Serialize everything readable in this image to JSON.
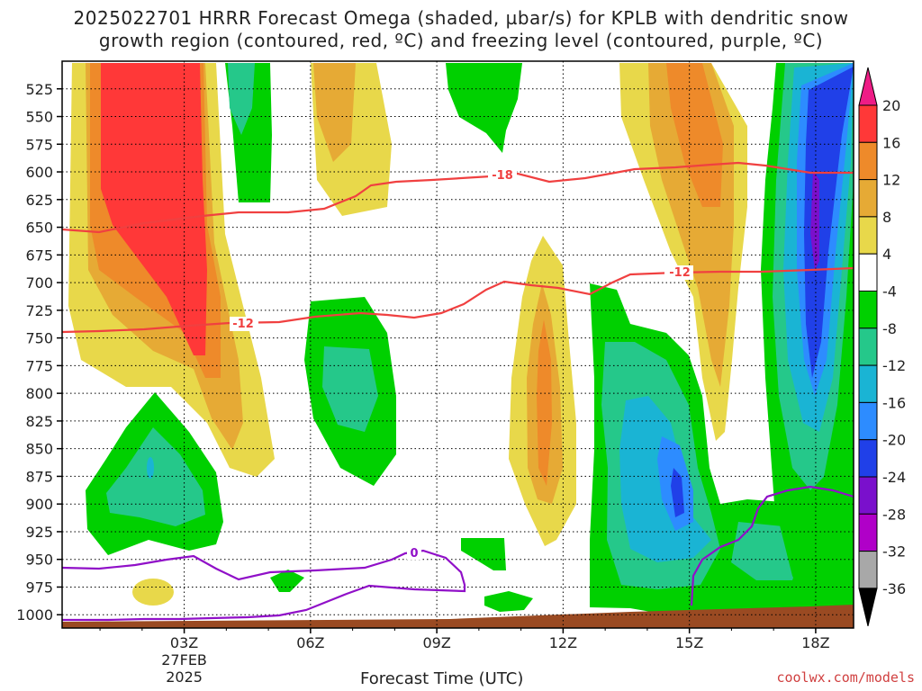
{
  "title_line1": "2025022701 HRRR Forecast Omega (shaded, µbar/s) for KPLB with dendritic snow",
  "title_line2": "growth region (contoured, red, ºC) and freezing level (contoured, purple, ºC)",
  "credit": "coolwx.com/models",
  "chart_data": {
    "type": "heatmap",
    "xlabel": "Forecast Time (UTC)",
    "ylabel": "",
    "x_ticks": [
      "03Z",
      "06Z",
      "09Z",
      "12Z",
      "15Z",
      "18Z"
    ],
    "x_tick_date": [
      "27FEB",
      "2025"
    ],
    "y_ticks": [
      525,
      550,
      575,
      600,
      625,
      650,
      675,
      700,
      725,
      750,
      775,
      800,
      825,
      850,
      875,
      900,
      925,
      950,
      975,
      1000
    ],
    "ylim": [
      500,
      1012
    ],
    "xlim_hours": [
      0.1,
      18.9
    ],
    "colorbar_labels": [
      20,
      16,
      12,
      8,
      4,
      -4,
      -8,
      -12,
      -16,
      -20,
      -24,
      -28,
      -32,
      -36
    ],
    "colorbar_colors": [
      "#ee1c86",
      "#ff3838",
      "#ee8a2a",
      "#e6aa35",
      "#e8d84a",
      "#ffffff",
      "#00d000",
      "#25c88a",
      "#1ab4d4",
      "#2d8cff",
      "#2040e8",
      "#7a10cc",
      "#b000c8",
      "#a8a8a8",
      "#000000"
    ],
    "contour_labels": {
      "dgz_top": "-18",
      "dgz_bottom": "-12",
      "freezing": "0"
    },
    "colors": {
      "dgz": "#f04040",
      "freezing": "#9010c8",
      "ground": "#9a4a22"
    }
  }
}
